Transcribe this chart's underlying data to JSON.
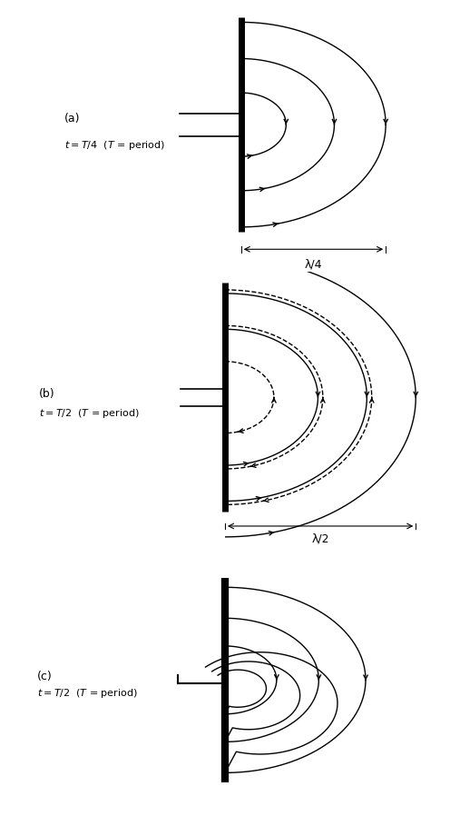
{
  "fig_width": 4.96,
  "fig_height": 8.98,
  "bg_color": "#ffffff",
  "panels": [
    {
      "label_a": "(a)",
      "label_b": "t = T/4 (T = period)",
      "type": "semicircles",
      "radii": [
        0.28,
        0.58,
        0.9
      ],
      "dim_label": "λ/4",
      "dim_r": 0.9
    },
    {
      "label_a": "(b)",
      "label_b": "t = T/2 (T = period)",
      "type": "mixed",
      "solid_radii": [
        0.95,
        1.45,
        1.95
      ],
      "dashed_radii": [
        0.5,
        1.0,
        1.5
      ],
      "dim_label": "λ/2",
      "dim_r": 1.95
    },
    {
      "label_a": "(c)",
      "label_b": "t = T/2 (T = period)",
      "type": "snail",
      "scales": [
        0.55,
        1.0,
        1.5
      ]
    }
  ]
}
